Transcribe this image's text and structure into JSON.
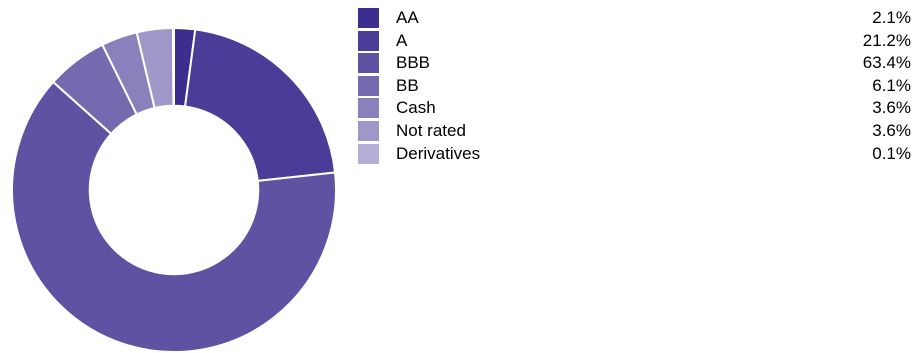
{
  "chart_data": {
    "type": "pie",
    "categories": [
      "AA",
      "A",
      "BBB",
      "BB",
      "Cash",
      "Not rated",
      "Derivatives"
    ],
    "values": [
      2.1,
      21.2,
      63.4,
      6.1,
      3.6,
      3.6,
      0.1
    ],
    "value_labels": [
      "2.1%",
      "21.2%",
      "63.4%",
      "6.1%",
      "3.6%",
      "3.6%",
      "0.1%"
    ],
    "colors": [
      "#3c2e8f",
      "#4a3d97",
      "#5e53a3",
      "#7569b0",
      "#8a80bc",
      "#9f97c8",
      "#b5aed6"
    ],
    "hole": 0.52,
    "legend_position": "right"
  }
}
